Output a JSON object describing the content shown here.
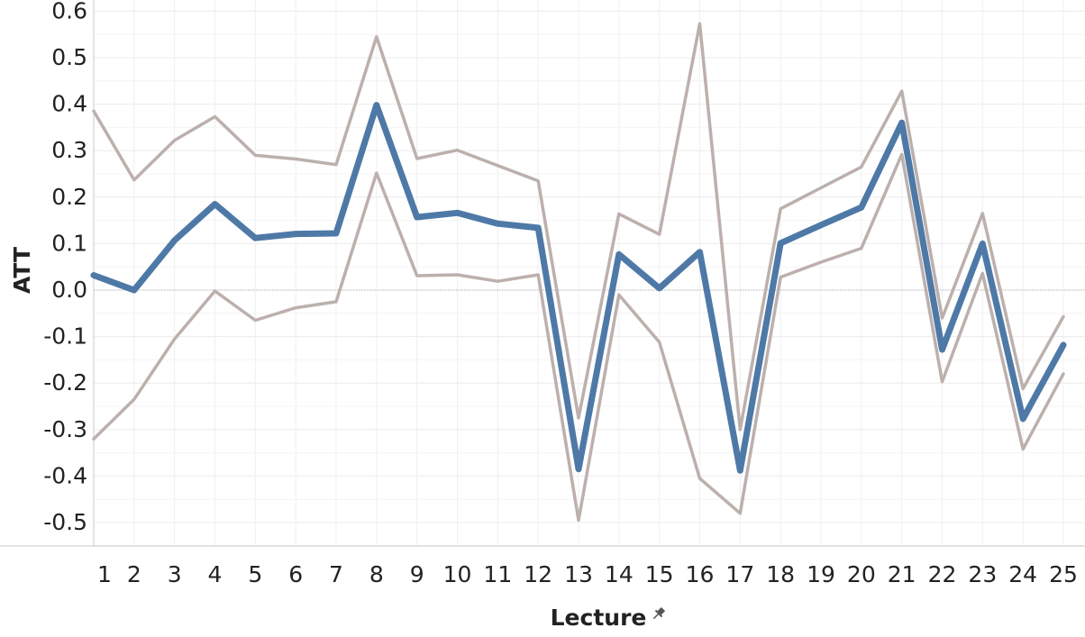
{
  "chart_data": {
    "type": "line",
    "xlabel": "Lecture",
    "ylabel": "ATT",
    "x": [
      1,
      2,
      3,
      4,
      5,
      6,
      7,
      8,
      9,
      10,
      11,
      12,
      13,
      14,
      15,
      16,
      17,
      18,
      19,
      20,
      21,
      22,
      23,
      24,
      25
    ],
    "ylim": [
      -0.55,
      0.62
    ],
    "yticks": [
      0.6,
      0.5,
      0.4,
      0.3,
      0.2,
      0.1,
      0.0,
      -0.1,
      -0.2,
      -0.3,
      -0.4,
      -0.5
    ],
    "ytick_labels": [
      "0.6",
      "0.5",
      "0.4",
      "0.3",
      "0.2",
      "0.1",
      "0.0",
      "-0.1",
      "-0.2",
      "-0.3",
      "-0.4",
      "-0.5"
    ],
    "grid": true,
    "zero_line": true,
    "series": [
      {
        "role": "upper-bound",
        "color": "#bcb0ad",
        "values": [
          0.385,
          0.237,
          0.322,
          0.373,
          0.29,
          0.282,
          0.27,
          0.545,
          0.283,
          0.301,
          0.268,
          0.235,
          -0.275,
          0.164,
          0.12,
          0.573,
          -0.3,
          0.175,
          0.22,
          0.265,
          0.428,
          -0.06,
          0.165,
          -0.212,
          -0.057
        ]
      },
      {
        "role": "lower-bound",
        "color": "#bcb0ad",
        "values": [
          -0.32,
          -0.235,
          -0.105,
          -0.002,
          -0.065,
          -0.038,
          -0.025,
          0.252,
          0.031,
          0.033,
          0.019,
          0.033,
          -0.495,
          -0.01,
          -0.112,
          -0.405,
          -0.48,
          0.028,
          0.06,
          0.09,
          0.292,
          -0.197,
          0.036,
          -0.342,
          -0.18
        ]
      },
      {
        "role": "estimate",
        "color": "#4e79a7",
        "values": [
          0.032,
          0.0,
          0.107,
          0.185,
          0.112,
          0.121,
          0.122,
          0.398,
          0.157,
          0.166,
          0.143,
          0.134,
          -0.385,
          0.077,
          0.004,
          0.082,
          -0.388,
          0.101,
          0.14,
          0.178,
          0.36,
          -0.128,
          0.1,
          -0.277,
          -0.118
        ]
      }
    ]
  }
}
